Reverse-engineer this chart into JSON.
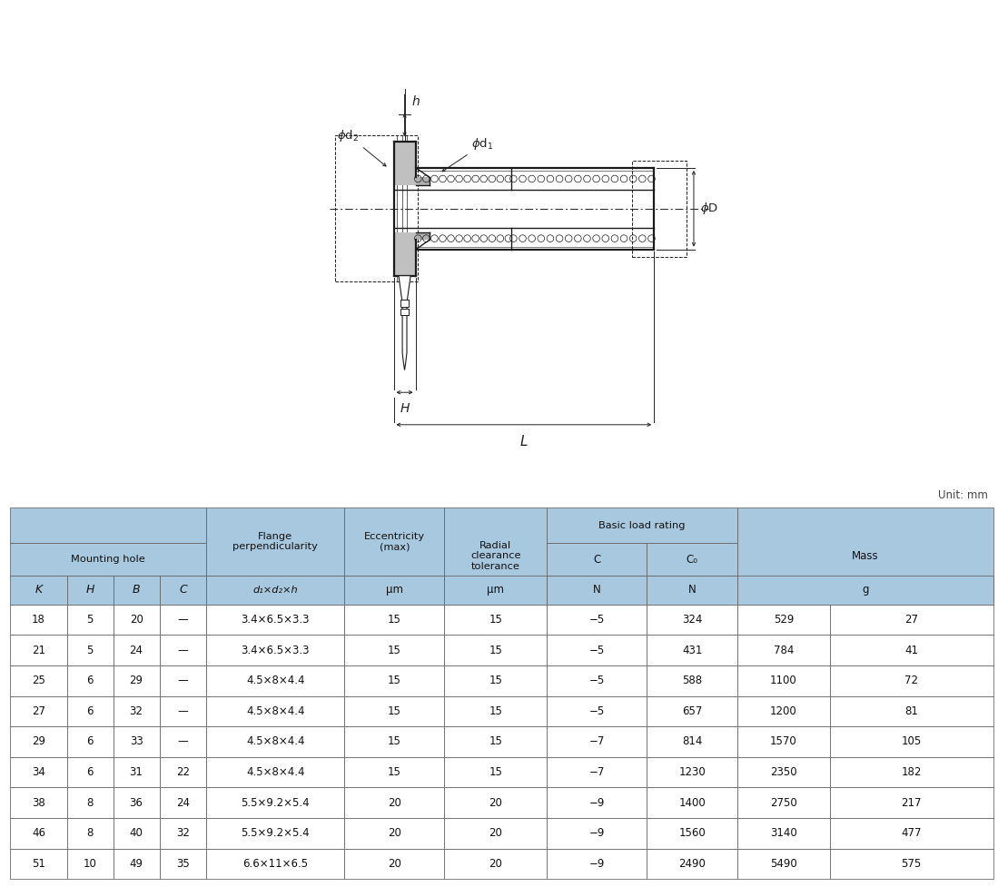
{
  "data_rows": [
    [
      "18",
      "5",
      "20",
      "—",
      "3.4×6.5×3.3",
      "15",
      "15",
      "−5",
      "324",
      "529",
      "27"
    ],
    [
      "21",
      "5",
      "24",
      "—",
      "3.4×6.5×3.3",
      "15",
      "15",
      "−5",
      "431",
      "784",
      "41"
    ],
    [
      "25",
      "6",
      "29",
      "—",
      "4.5×8×4.4",
      "15",
      "15",
      "−5",
      "588",
      "1100",
      "72"
    ],
    [
      "27",
      "6",
      "32",
      "—",
      "4.5×8×4.4",
      "15",
      "15",
      "−5",
      "657",
      "1200",
      "81"
    ],
    [
      "29",
      "6",
      "33",
      "—",
      "4.5×8×4.4",
      "15",
      "15",
      "−7",
      "814",
      "1570",
      "105"
    ],
    [
      "34",
      "6",
      "31",
      "22",
      "4.5×8×4.4",
      "15",
      "15",
      "−7",
      "1230",
      "2350",
      "182"
    ],
    [
      "38",
      "8",
      "36",
      "24",
      "5.5×9.2×5.4",
      "20",
      "20",
      "−9",
      "1400",
      "2750",
      "217"
    ],
    [
      "46",
      "8",
      "40",
      "32",
      "5.5×9.2×5.4",
      "20",
      "20",
      "−9",
      "1560",
      "3140",
      "477"
    ],
    [
      "51",
      "10",
      "49",
      "35",
      "6.6×11×6.5",
      "20",
      "20",
      "−9",
      "2490",
      "5490",
      "575"
    ]
  ],
  "header_bg": "#a8c8e0",
  "unit_text": "Unit: mm",
  "bg_color": "#ffffff",
  "line_color": "#1a1a1a",
  "dim_color": "#222222"
}
